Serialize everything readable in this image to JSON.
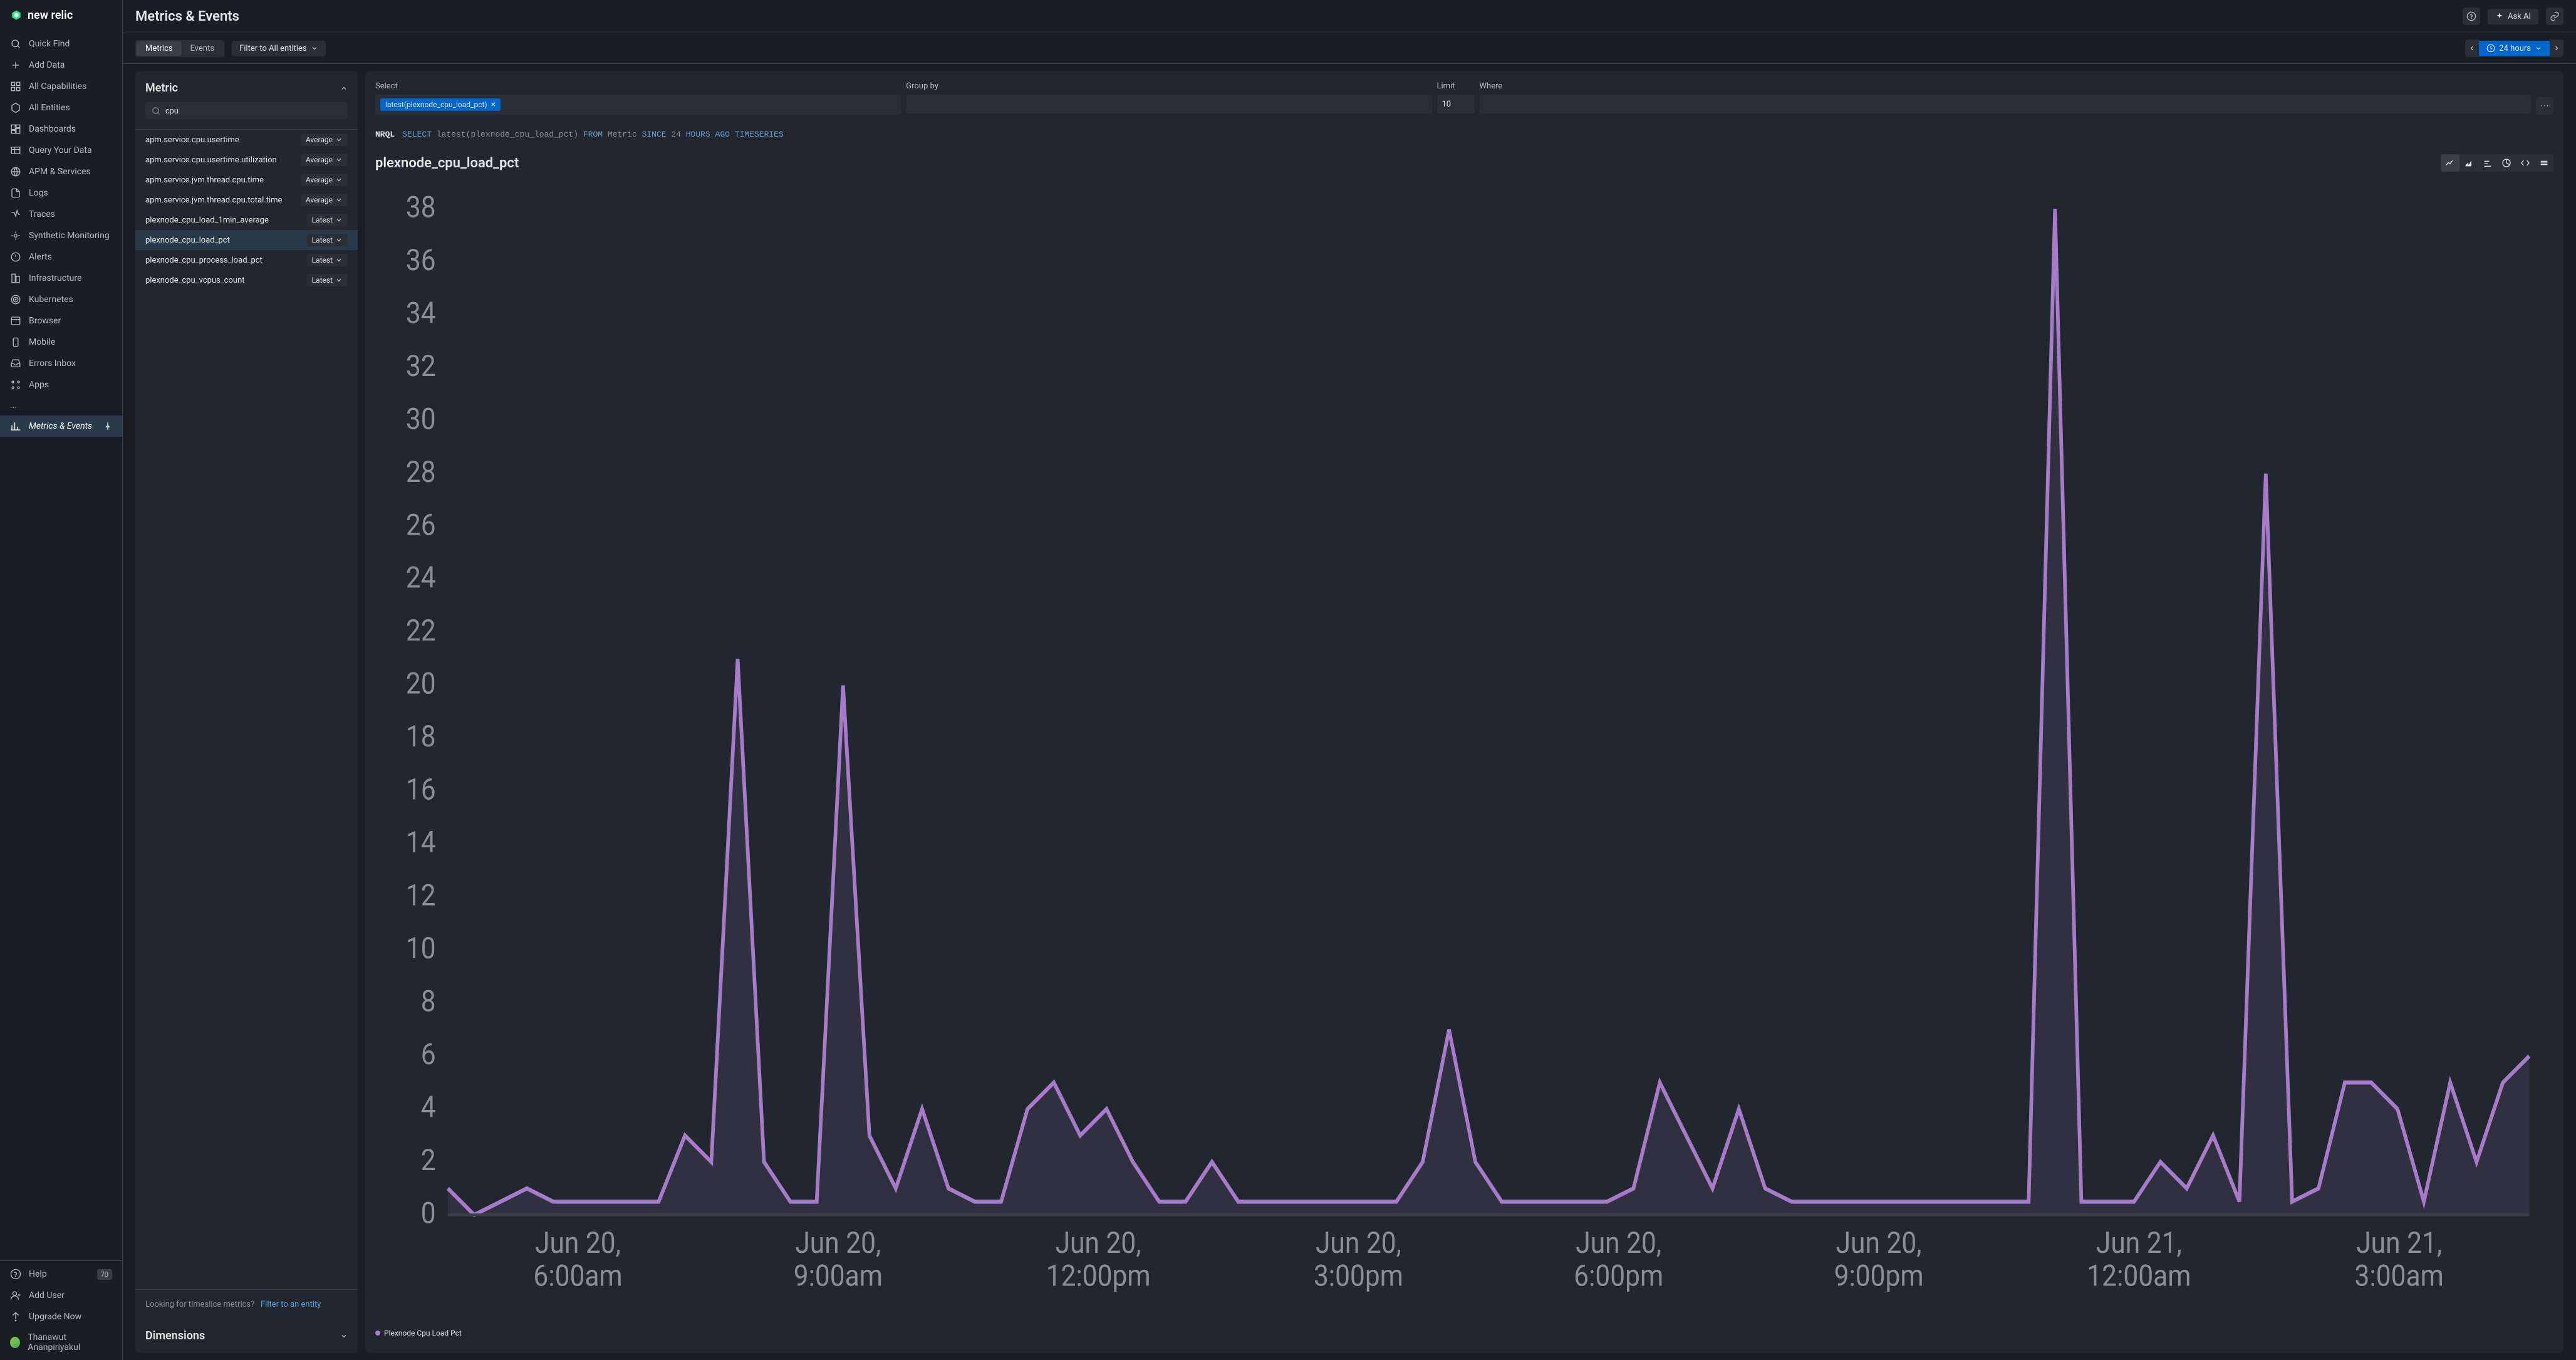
{
  "brand": {
    "name": "new relic"
  },
  "header": {
    "title": "Metrics & Events",
    "ask_ai": "Ask AI"
  },
  "sidebar": {
    "items": [
      {
        "label": "Quick Find",
        "icon": "search"
      },
      {
        "label": "Add Data",
        "icon": "plus"
      },
      {
        "label": "All Capabilities",
        "icon": "grid"
      },
      {
        "label": "All Entities",
        "icon": "hex"
      },
      {
        "label": "Dashboards",
        "icon": "dashboard"
      },
      {
        "label": "Query Your Data",
        "icon": "table"
      },
      {
        "label": "APM & Services",
        "icon": "globe"
      },
      {
        "label": "Logs",
        "icon": "file"
      },
      {
        "label": "Traces",
        "icon": "traces"
      },
      {
        "label": "Synthetic Monitoring",
        "icon": "monitor"
      },
      {
        "label": "Alerts",
        "icon": "alert"
      },
      {
        "label": "Infrastructure",
        "icon": "building"
      },
      {
        "label": "Kubernetes",
        "icon": "target"
      },
      {
        "label": "Browser",
        "icon": "browser"
      },
      {
        "label": "Mobile",
        "icon": "mobile"
      },
      {
        "label": "Errors Inbox",
        "icon": "inbox"
      },
      {
        "label": "Apps",
        "icon": "apps"
      }
    ],
    "more": "...",
    "active": {
      "label": "Metrics & Events",
      "icon": "chart"
    },
    "footer": [
      {
        "label": "Help",
        "badge": "70",
        "icon": "help"
      },
      {
        "label": "Add User",
        "icon": "adduser"
      },
      {
        "label": "Upgrade Now",
        "icon": "upgrade"
      }
    ],
    "user": {
      "name": "Thanawut Ananpiriyakul"
    }
  },
  "toolbar": {
    "tabs": [
      "Metrics",
      "Events"
    ],
    "active_tab": 0,
    "filter_label": "Filter to All entities",
    "time_label": "24 hours"
  },
  "metric_panel": {
    "title": "Metric",
    "search_value": "cpu",
    "metrics": [
      {
        "name": "apm.service.cpu.usertime",
        "agg": "Average"
      },
      {
        "name": "apm.service.cpu.usertime.utilization",
        "agg": "Average"
      },
      {
        "name": "apm.service.jvm.thread.cpu.time",
        "agg": "Average"
      },
      {
        "name": "apm.service.jvm.thread.cpu.total.time",
        "agg": "Average"
      },
      {
        "name": "plexnode_cpu_load_1min_average",
        "agg": "Latest"
      },
      {
        "name": "plexnode_cpu_load_pct",
        "agg": "Latest",
        "selected": true
      },
      {
        "name": "plexnode_cpu_process_load_pct",
        "agg": "Latest"
      },
      {
        "name": "plexnode_cpu_vcpus_count",
        "agg": "Latest"
      }
    ],
    "timeslice_text": "Looking for timeslice metrics?",
    "timeslice_link": "Filter to an entity",
    "dimensions_title": "Dimensions"
  },
  "query": {
    "select_label": "Select",
    "select_chip": "latest(plexnode_cpu_load_pct)",
    "groupby_label": "Group by",
    "limit_label": "Limit",
    "limit_value": "10",
    "where_label": "Where",
    "nrql_label": "NRQL",
    "nrql_parts": [
      {
        "t": "SELECT",
        "kw": true
      },
      {
        "t": " latest(plexnode_cpu_load_pct) "
      },
      {
        "t": "FROM",
        "kw": true
      },
      {
        "t": " Metric "
      },
      {
        "t": "SINCE",
        "kw": true
      },
      {
        "t": " 24 "
      },
      {
        "t": "HOURS AGO TIMESERIES",
        "kw": true
      }
    ]
  },
  "chart": {
    "title": "plexnode_cpu_load_pct",
    "type": "line",
    "y_ticks": [
      0,
      2,
      4,
      6,
      8,
      10,
      12,
      14,
      16,
      18,
      20,
      22,
      24,
      26,
      28,
      30,
      32,
      34,
      36,
      38
    ],
    "y_min": 0,
    "y_max": 38,
    "x_labels": [
      "Jun 20, 6:00am",
      "Jun 20, 9:00am",
      "Jun 20, 12:00pm",
      "Jun 20, 3:00pm",
      "Jun 20, 6:00pm",
      "Jun 20, 9:00pm",
      "Jun 21, 12:00am",
      "Jun 21, 3:00am"
    ],
    "line_color": "#a77bca",
    "fill_color": "#a77bca",
    "fill_opacity": 0.12,
    "background_color": "#22262e",
    "grid_color": "#2a2e37",
    "legend_label": "Plexnode Cpu Load Pct",
    "series": [
      1,
      0,
      0.5,
      1,
      0.5,
      0.5,
      0.5,
      0.5,
      0.5,
      3,
      2,
      21,
      2,
      0.5,
      0.5,
      20,
      3,
      1,
      4,
      1,
      0.5,
      0.5,
      4,
      5,
      3,
      4,
      2,
      0.5,
      0.5,
      2,
      0.5,
      0.5,
      0.5,
      0.5,
      0.5,
      0.5,
      0.5,
      2,
      7,
      2,
      0.5,
      0.5,
      0.5,
      0.5,
      0.5,
      1,
      5,
      3,
      1,
      4,
      1,
      0.5,
      0.5,
      0.5,
      0.5,
      0.5,
      0.5,
      0.5,
      0.5,
      0.5,
      0.5,
      38,
      0.5,
      0.5,
      0.5,
      2,
      1,
      3,
      0.5,
      28,
      0.5,
      1,
      5,
      5,
      4,
      0.5,
      5,
      2,
      5,
      6
    ]
  }
}
